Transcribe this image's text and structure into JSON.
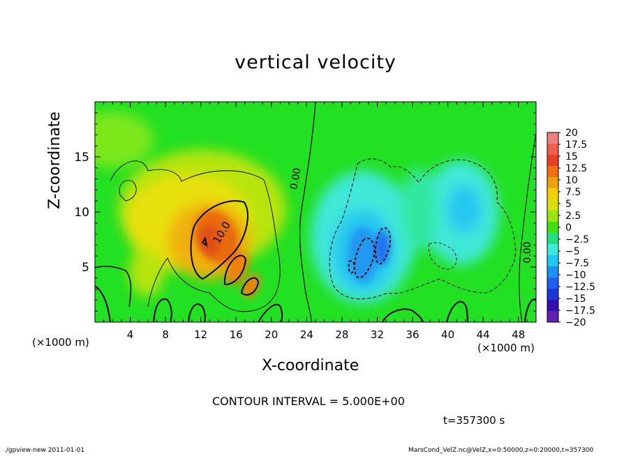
{
  "chart_data": {
    "type": "heatmap",
    "title": "vertical velocity",
    "xlabel": "X-coordinate",
    "ylabel": "Z-coordinate",
    "x_unit_label": "(×1000 m)",
    "xlim": [
      0,
      50
    ],
    "ylim": [
      0,
      20
    ],
    "x_ticks": [
      "4",
      "8",
      "12",
      "16",
      "20",
      "24",
      "28",
      "32",
      "36",
      "40",
      "44",
      "48"
    ],
    "y_ticks": [
      "5",
      "10",
      "15"
    ],
    "colorbar_labels": [
      "20",
      "17.5",
      "15",
      "12.5",
      "10",
      "7.5",
      "5",
      "2.5",
      "0",
      "−2.5",
      "−5",
      "−7.5",
      "−10",
      "−12.5",
      "−15",
      "−17.5",
      "−20"
    ],
    "colorbar_colors": [
      "#f08080",
      "#f06048",
      "#e84020",
      "#f07010",
      "#f0a010",
      "#f0d000",
      "#d8e010",
      "#a0e010",
      "#40e010",
      "#20e080",
      "#40e8d8",
      "#20c8f0",
      "#2090f0",
      "#2060f0",
      "#1838d8",
      "#3010b0",
      "#6020b0"
    ],
    "contour_labels": [
      "0.00",
      "10.0",
      "0.00"
    ],
    "contour_interval_text": "CONTOUR INTERVAL = 5.000E+00",
    "time_text": "t=357300 s"
  },
  "footer": {
    "left": "./gpview-new  2011-01-01",
    "right": "MarsCond_VelZ.nc@VelZ,x=0:50000,z=0:20000,t=357300"
  }
}
